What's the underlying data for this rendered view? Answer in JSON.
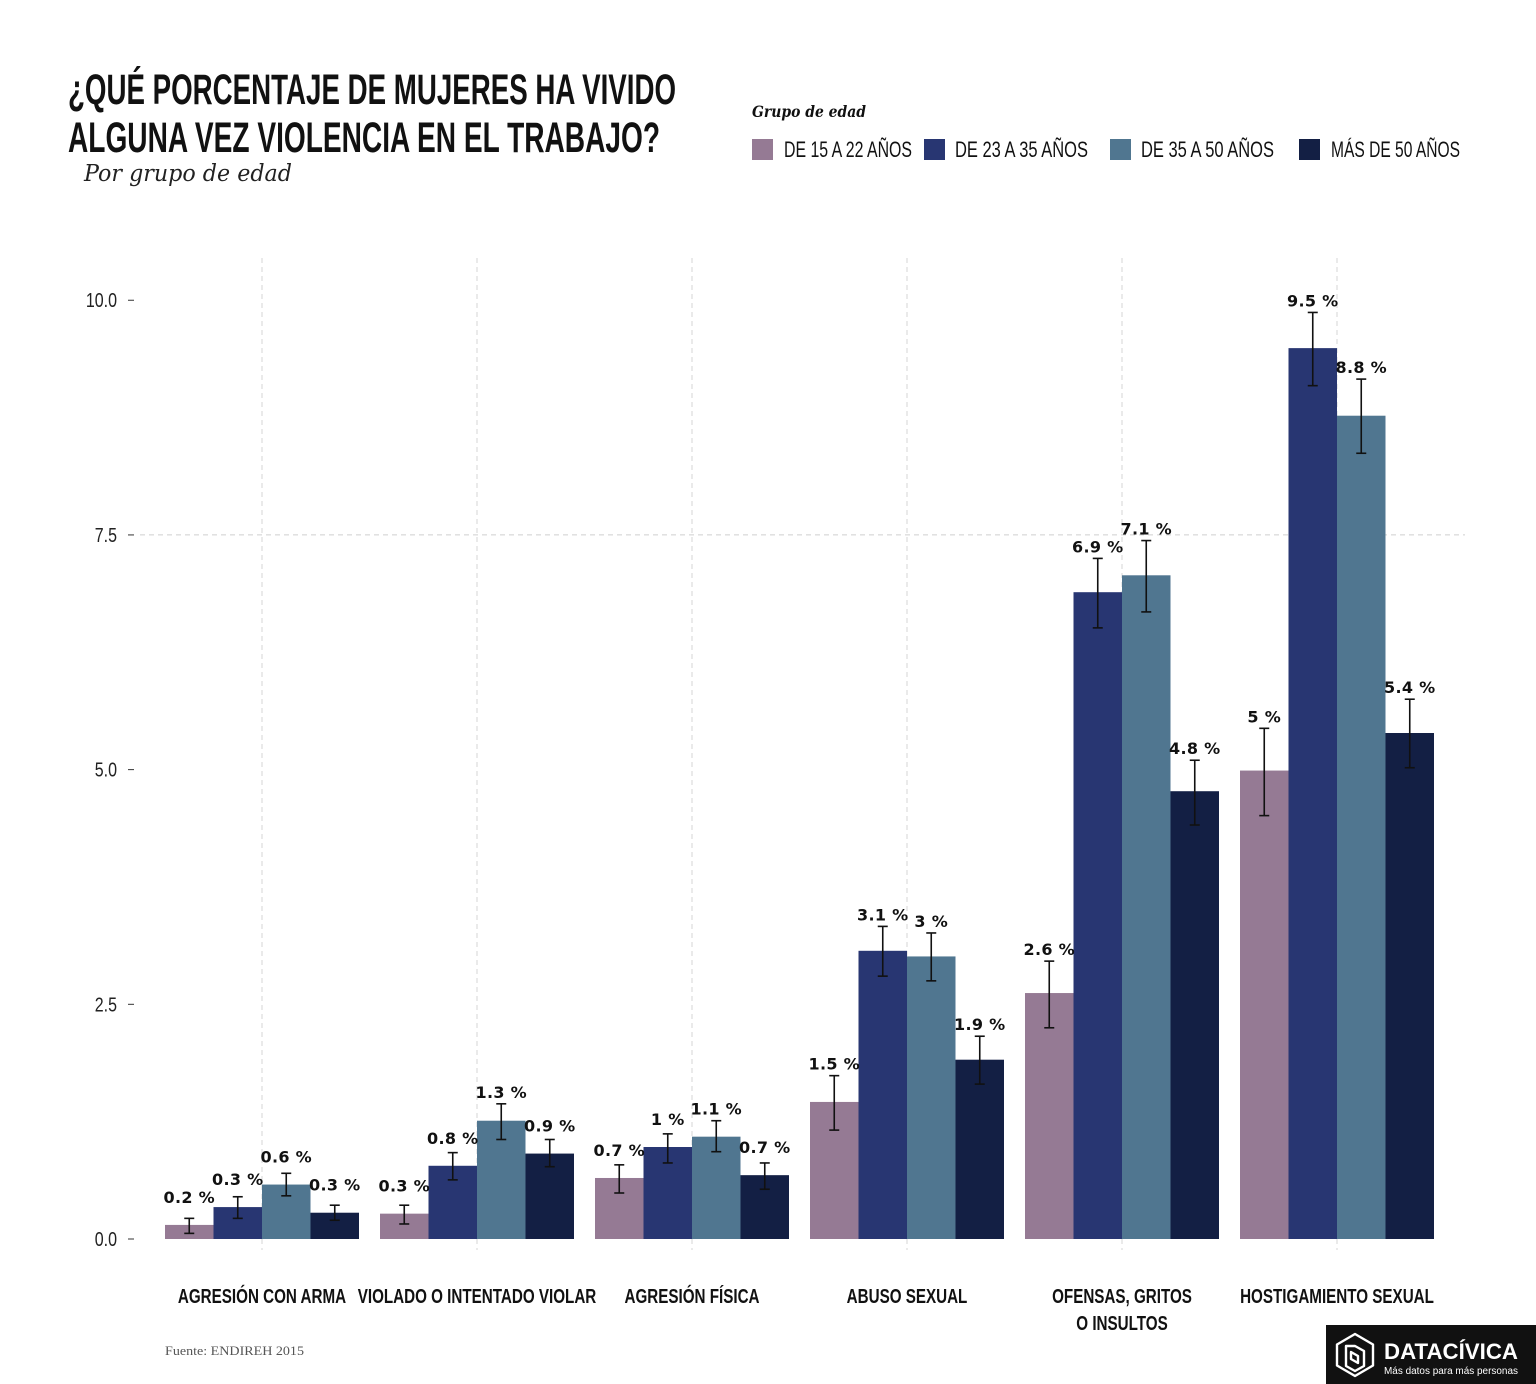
{
  "chart_data": {
    "type": "bar",
    "title_lines": [
      "¿QUÉ PORCENTAJE DE MUJERES HA VIVIDO",
      "ALGUNA VEZ VIOLENCIA EN EL TRABAJO?"
    ],
    "subtitle": "Por grupo de edad",
    "legend_title": "Grupo de edad",
    "legend_position": "top-right",
    "categories": [
      "AGRESIÓN CON ARMA",
      "VIOLADO O INTENTADO VIOLAR",
      "AGRESIÓN FÍSICA",
      "ABUSO SEXUAL",
      "OFENSAS, GRITOS\nO INSULTOS",
      "HOSTIGAMIENTO SEXUAL"
    ],
    "xlabel": "",
    "ylabel": "",
    "ylim": [
      0,
      10.45
    ],
    "yticks": [
      0,
      2.5,
      5,
      7.5,
      10
    ],
    "ytick_labels": [
      "0.0",
      "2.5",
      "5.0",
      "7.5",
      "10.0"
    ],
    "grid": {
      "vertical": true,
      "horizontal_at": [
        7.5
      ]
    },
    "series": [
      {
        "name": "DE 15 A 22 AÑOS",
        "color": "#957A94",
        "values": [
          0.15,
          0.27,
          0.65,
          1.46,
          2.62,
          4.99
        ],
        "error_low": [
          0.06,
          0.16,
          0.49,
          1.16,
          2.25,
          4.51
        ],
        "error_high": [
          0.22,
          0.36,
          0.79,
          1.74,
          2.96,
          5.44
        ],
        "labels": [
          "0.2 %",
          "0.3 %",
          "0.7 %",
          "1.5 %",
          "2.6 %",
          "5 %"
        ]
      },
      {
        "name": "DE 23 A 35 AÑOS",
        "color": "#283672",
        "values": [
          0.34,
          0.78,
          0.98,
          3.07,
          6.89,
          9.49
        ],
        "error_low": [
          0.22,
          0.63,
          0.81,
          2.8,
          6.51,
          9.09
        ],
        "error_high": [
          0.45,
          0.92,
          1.12,
          3.33,
          7.25,
          9.87
        ],
        "labels": [
          "0.3 %",
          "0.8 %",
          "1 %",
          "3.1 %",
          "6.9 %",
          "9.5 %"
        ]
      },
      {
        "name": "DE 35 A 50 AÑOS",
        "color": "#507690",
        "values": [
          0.58,
          1.26,
          1.09,
          3.01,
          7.07,
          8.77
        ],
        "error_low": [
          0.46,
          1.06,
          0.93,
          2.75,
          6.68,
          8.37
        ],
        "error_high": [
          0.7,
          1.44,
          1.26,
          3.26,
          7.44,
          9.16
        ],
        "labels": [
          "0.6 %",
          "1.3 %",
          "1.1 %",
          "3 %",
          "7.1 %",
          "8.8 %"
        ]
      },
      {
        "name": "MÁS DE 50 AÑOS",
        "color": "#131F44",
        "values": [
          0.28,
          0.91,
          0.68,
          1.91,
          4.77,
          5.39
        ],
        "error_low": [
          0.2,
          0.77,
          0.53,
          1.65,
          4.41,
          5.02
        ],
        "error_high": [
          0.36,
          1.06,
          0.81,
          2.16,
          5.1,
          5.75
        ],
        "labels": [
          "0.3 %",
          "0.9 %",
          "0.7 %",
          "1.9 %",
          "4.8 %",
          "5.4 %"
        ]
      }
    ]
  },
  "source": "Fuente: ENDIREH 2015",
  "logo": {
    "name": "DATACÍVICA",
    "tagline": "Más datos para más personas"
  },
  "colors": {
    "background": "#FFFFFF",
    "text": "#111111",
    "logo_background": "#111111",
    "gridline": "#CFCFCF"
  }
}
